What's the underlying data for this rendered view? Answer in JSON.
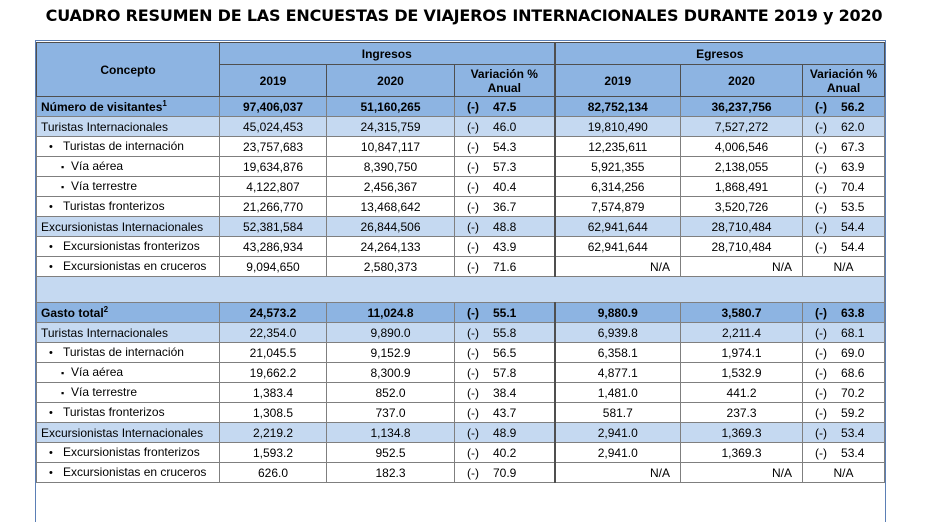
{
  "title": "CUADRO RESUMEN DE LAS ENCUESTAS DE VIAJEROS INTERNACIONALES DURANTE 2019 y 2020",
  "header": {
    "concepto": "Concepto",
    "ingresos": "Ingresos",
    "egresos": "Egresos",
    "y2019": "2019",
    "y2020": "2020",
    "variacion": "Variación %",
    "anual": "Anual"
  },
  "sign": "(-)",
  "bullet": "•",
  "square": "▪",
  "visitantes": [
    {
      "label": "Número de visitantes",
      "sup": "1",
      "i19": "97,406,037",
      "i20": "51,160,265",
      "iv": "47.5",
      "e19": "82,752,134",
      "e20": "36,237,756",
      "ev": "56.2"
    },
    {
      "label": "Turistas Internacionales",
      "i19": "45,024,453",
      "i20": "24,315,759",
      "iv": "46.0",
      "e19": "19,810,490",
      "e20": "7,527,272",
      "ev": "62.0"
    },
    {
      "label": "Turistas de internación",
      "i19": "23,757,683",
      "i20": "10,847,117",
      "iv": "54.3",
      "e19": "12,235,611",
      "e20": "4,006,546",
      "ev": "67.3"
    },
    {
      "label": "Vía aérea",
      "i19": "19,634,876",
      "i20": "8,390,750",
      "iv": "57.3",
      "e19": "5,921,355",
      "e20": "2,138,055",
      "ev": "63.9"
    },
    {
      "label": "Vía terrestre",
      "i19": "4,122,807",
      "i20": "2,456,367",
      "iv": "40.4",
      "e19": "6,314,256",
      "e20": "1,868,491",
      "ev": "70.4"
    },
    {
      "label": "Turistas fronterizos",
      "i19": "21,266,770",
      "i20": "13,468,642",
      "iv": "36.7",
      "e19": "7,574,879",
      "e20": "3,520,726",
      "ev": "53.5"
    },
    {
      "label": "Excursionistas Internacionales",
      "i19": "52,381,584",
      "i20": "26,844,506",
      "iv": "48.8",
      "e19": "62,941,644",
      "e20": "28,710,484",
      "ev": "54.4"
    },
    {
      "label": "Excursionistas fronterizos",
      "i19": "43,286,934",
      "i20": "24,264,133",
      "iv": "43.9",
      "e19": "62,941,644",
      "e20": "28,710,484",
      "ev": "54.4"
    },
    {
      "label": "Excursionistas en cruceros",
      "i19": "9,094,650",
      "i20": "2,580,373",
      "iv": "71.6",
      "e19": "N/A",
      "e20": "N/A",
      "ev": "N/A"
    }
  ],
  "gasto": [
    {
      "label": "Gasto total",
      "sup": "2",
      "i19": "24,573.2",
      "i20": "11,024.8",
      "iv": "55.1",
      "e19": "9,880.9",
      "e20": "3,580.7",
      "ev": "63.8"
    },
    {
      "label": "Turistas Internacionales",
      "i19": "22,354.0",
      "i20": "9,890.0",
      "iv": "55.8",
      "e19": "6,939.8",
      "e20": "2,211.4",
      "ev": "68.1"
    },
    {
      "label": "Turistas de internación",
      "i19": "21,045.5",
      "i20": "9,152.9",
      "iv": "56.5",
      "e19": "6,358.1",
      "e20": "1,974.1",
      "ev": "69.0"
    },
    {
      "label": "Vía aérea",
      "i19": "19,662.2",
      "i20": "8,300.9",
      "iv": "57.8",
      "e19": "4,877.1",
      "e20": "1,532.9",
      "ev": "68.6"
    },
    {
      "label": "Vía terrestre",
      "i19": "1,383.4",
      "i20": "852.0",
      "iv": "38.4",
      "e19": "1,481.0",
      "e20": "441.2",
      "ev": "70.2"
    },
    {
      "label": "Turistas fronterizos",
      "i19": "1,308.5",
      "i20": "737.0",
      "iv": "43.7",
      "e19": "581.7",
      "e20": "237.3",
      "ev": "59.2"
    },
    {
      "label": "Excursionistas Internacionales",
      "i19": "2,219.2",
      "i20": "1,134.8",
      "iv": "48.9",
      "e19": "2,941.0",
      "e20": "1,369.3",
      "ev": "53.4"
    },
    {
      "label": "Excursionistas fronterizos",
      "i19": "1,593.2",
      "i20": "952.5",
      "iv": "40.2",
      "e19": "2,941.0",
      "e20": "1,369.3",
      "ev": "53.4"
    },
    {
      "label": "Excursionistas en cruceros",
      "i19": "626.0",
      "i20": "182.3",
      "iv": "70.9",
      "e19": "N/A",
      "e20": "N/A",
      "ev": "N/A"
    }
  ]
}
